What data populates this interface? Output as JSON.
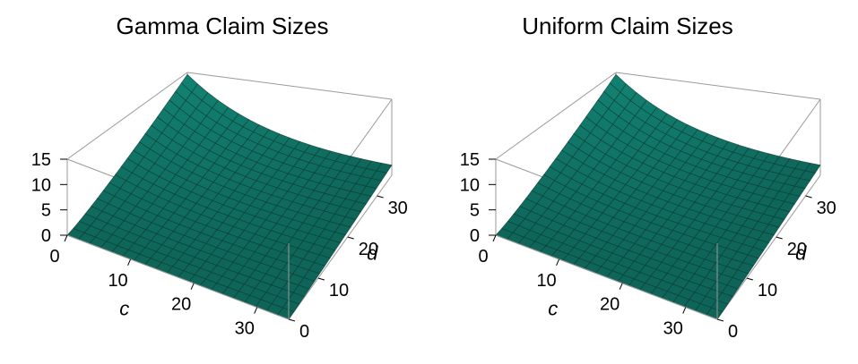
{
  "colors": {
    "surface": "#127a6c",
    "surface_light": "#1f9a88",
    "mesh": "#0a3a33",
    "box": "#9a9a9a"
  },
  "chart_data": [
    {
      "type": "surface3d",
      "title": "Gamma Claim Sizes",
      "xlabel": "c",
      "ylabel": "d",
      "zlabel": "",
      "xlim": [
        0,
        35
      ],
      "ylim": [
        0,
        35
      ],
      "zlim": [
        0,
        15
      ],
      "x_ticks": [
        "0",
        "10",
        "20",
        "30"
      ],
      "y_ticks": [
        "0",
        "10",
        "20",
        "30"
      ],
      "z_ticks": [
        "0",
        "5",
        "10",
        "15"
      ],
      "grid_lines": 20,
      "corner_values": {
        "c0_d0": 0.0,
        "c35_d0": 0.0,
        "c0_d35": 14.6,
        "c35_d35": 2.0
      }
    },
    {
      "type": "surface3d",
      "title": "Uniform Claim Sizes",
      "xlabel": "c",
      "ylabel": "d",
      "zlabel": "",
      "xlim": [
        0,
        35
      ],
      "ylim": [
        0,
        35
      ],
      "zlim": [
        0,
        15
      ],
      "x_ticks": [
        "0",
        "10",
        "20",
        "30"
      ],
      "y_ticks": [
        "0",
        "10",
        "20",
        "30"
      ],
      "z_ticks": [
        "0",
        "5",
        "10",
        "15"
      ],
      "grid_lines": 20,
      "corner_values": {
        "c0_d0": 0.0,
        "c35_d0": 0.0,
        "c0_d35": 14.6,
        "c35_d35": 2.0
      }
    }
  ]
}
